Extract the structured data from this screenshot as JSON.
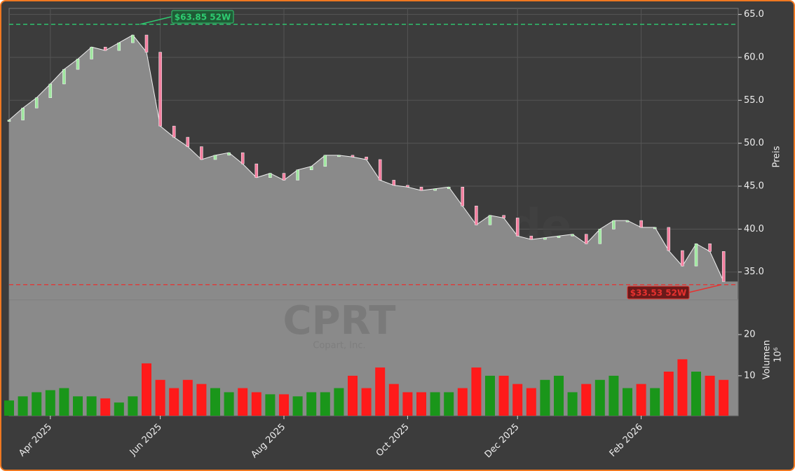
{
  "chart_data": [
    {
      "type": "area",
      "title": "CPRT",
      "subtitle": "Copart, Inc.",
      "watermark": "forexsignale.trade",
      "y_label": "Preis",
      "categories": [
        null,
        null,
        null,
        "Apr 2025",
        null,
        null,
        null,
        null,
        null,
        null,
        null,
        "Jun 2025",
        null,
        null,
        null,
        null,
        null,
        null,
        null,
        null,
        "Aug 2025",
        null,
        null,
        null,
        null,
        null,
        null,
        null,
        null,
        "Oct 2025",
        null,
        null,
        null,
        null,
        null,
        null,
        null,
        "Dec 2025",
        null,
        null,
        null,
        null,
        null,
        null,
        null,
        null,
        "Feb 2026",
        null,
        null,
        null,
        null,
        null,
        null
      ],
      "values": [
        52.7,
        54.1,
        55.3,
        56.9,
        58.6,
        59.8,
        61.2,
        60.8,
        61.7,
        62.6,
        60.6,
        52.0,
        50.7,
        49.6,
        48.1,
        48.6,
        48.9,
        47.6,
        46.0,
        46.5,
        45.7,
        46.9,
        47.3,
        48.6,
        48.6,
        48.4,
        48.1,
        45.7,
        45.1,
        44.9,
        44.5,
        44.7,
        44.9,
        42.7,
        40.5,
        41.6,
        41.3,
        39.2,
        38.8,
        39.0,
        39.2,
        39.4,
        38.3,
        40.0,
        41.0,
        41.0,
        40.2,
        40.2,
        37.5,
        35.7,
        38.3,
        37.4,
        33.9
      ],
      "color": "#8a8a8a",
      "line_color": "#f0f0f0",
      "ylim": [
        31.8,
        65.7
      ],
      "yticks": [
        {
          "value": 35,
          "label": "35.0"
        },
        {
          "value": 40,
          "label": "40.0"
        },
        {
          "value": 45,
          "label": "45.0"
        },
        {
          "value": 50,
          "label": "50.0"
        },
        {
          "value": 55,
          "label": "55.0"
        },
        {
          "value": 60,
          "label": "60.0"
        },
        {
          "value": 65,
          "label": "65.0"
        }
      ],
      "grid": true,
      "annotations": [
        {
          "value": 63.85,
          "label": "$63.85 52W",
          "color": "#2ecc71"
        },
        {
          "value": 33.53,
          "label": "$33.53 52W",
          "color": "#e8312f"
        }
      ]
    },
    {
      "type": "bar",
      "y_label": "Volumen",
      "y_offset_label": "10⁶",
      "values": [
        4,
        5,
        6,
        6.5,
        7,
        5,
        5,
        4.5,
        3.5,
        5,
        13,
        9,
        7,
        9,
        8,
        7,
        6,
        7,
        6,
        5.5,
        5.5,
        5,
        6,
        6,
        7,
        10,
        7,
        12,
        8,
        6,
        6,
        6,
        6,
        7,
        12,
        10,
        10,
        8,
        7,
        9,
        10,
        6,
        8,
        9,
        10,
        7,
        8,
        7,
        11,
        14,
        11,
        10,
        9
      ],
      "up_color": "#1a961a",
      "down_color": "#ff1a1a",
      "color": "#8a8a8a",
      "ylim": [
        0.3,
        28.5
      ],
      "yticks": [
        10,
        20
      ]
    }
  ]
}
